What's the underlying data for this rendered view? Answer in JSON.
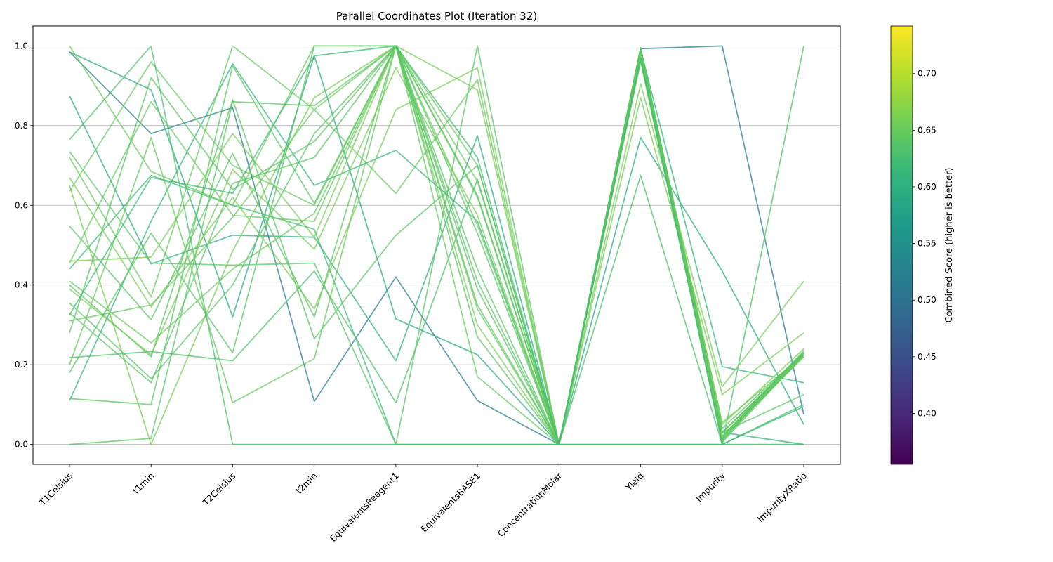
{
  "chart_data": {
    "type": "line",
    "title": "Parallel Coordinates Plot (Iteration 32)",
    "axes": [
      "T1Celsius",
      "t1min",
      "T2Celsius",
      "t2min",
      "EquivalentsReagent1",
      "EquivalentsBASE1",
      "ConcentrationMolar",
      "Yield",
      "Impurity",
      "ImpurityXRatio"
    ],
    "ylim": [
      -0.05,
      1.05
    ],
    "yticks": [
      "0.0",
      "0.2",
      "0.4",
      "0.6",
      "0.8",
      "1.0"
    ],
    "grid": "horizontal",
    "colorbar": {
      "label": "Combined Score (higher is better)",
      "range": [
        0.355,
        0.742
      ],
      "ticks": [
        "0.40",
        "0.45",
        "0.50",
        "0.55",
        "0.60",
        "0.65",
        "0.70"
      ],
      "tick_values": [
        0.4,
        0.45,
        0.5,
        0.55,
        0.6,
        0.65,
        0.7
      ],
      "colormap": [
        "#440154",
        "#482878",
        "#3e4989",
        "#31688e",
        "#26828e",
        "#1f9e89",
        "#35b779",
        "#6ece58",
        "#b5de2b",
        "#fde725"
      ]
    },
    "series": [
      {
        "values": [
          0.985,
          0.78,
          0.845,
          0.108,
          0.42,
          0.11,
          0.0,
          0.993,
          1.0,
          0.075
        ],
        "score": 0.52
      },
      {
        "values": [
          0.985,
          0.89,
          0.32,
          0.975,
          0.315,
          0.225,
          0.0,
          0.77,
          0.435,
          0.05
        ],
        "score": 0.59
      },
      {
        "values": [
          0.875,
          0.453,
          0.525,
          0.52,
          0.21,
          0.775,
          0.0,
          0.99,
          0.03,
          0.0
        ],
        "score": 0.6
      },
      {
        "values": [
          0.11,
          0.56,
          0.955,
          0.65,
          0.738,
          0.56,
          0.0,
          0.99,
          0.195,
          0.155
        ],
        "score": 0.61
      },
      {
        "values": [
          0.44,
          0.675,
          0.6,
          0.54,
          0.0,
          0.0,
          0.0,
          0.0,
          0.0,
          0.095
        ],
        "score": 0.62
      },
      {
        "values": [
          0.218,
          0.233,
          0.21,
          0.435,
          0.105,
          0.665,
          0.0,
          0.675,
          0.0,
          0.0
        ],
        "score": 0.63
      },
      {
        "values": [
          0.115,
          0.1,
          0.95,
          0.605,
          1.0,
          0.41,
          0.0,
          0.99,
          0.02,
          0.235
        ],
        "score": 0.64
      },
      {
        "values": [
          0.765,
          1.0,
          0.0,
          0.0,
          0.0,
          0.0,
          0.0,
          0.0,
          0.0,
          1.0
        ],
        "score": 0.63
      },
      {
        "values": [
          0.0,
          0.015,
          0.86,
          0.85,
          1.0,
          0.53,
          0.0,
          0.99,
          0.01,
          0.23
        ],
        "score": 0.64
      },
      {
        "values": [
          1.0,
          0.685,
          0.6,
          1.0,
          1.0,
          0.34,
          0.0,
          0.995,
          0.02,
          0.225
        ],
        "score": 0.65
      },
      {
        "values": [
          0.735,
          0.455,
          0.45,
          0.455,
          0.0,
          1.0,
          0.0,
          0.995,
          0.03,
          0.23
        ],
        "score": 0.64
      },
      {
        "values": [
          0.72,
          0.37,
          1.0,
          0.84,
          1.0,
          0.62,
          0.0,
          0.96,
          0.015,
          0.22
        ],
        "score": 0.65
      },
      {
        "values": [
          0.67,
          0.345,
          0.62,
          0.34,
          0.84,
          0.945,
          0.0,
          0.905,
          0.145,
          0.41
        ],
        "score": 0.66
      },
      {
        "values": [
          0.65,
          0.0,
          0.485,
          0.87,
          1.0,
          0.89,
          0.0,
          0.87,
          0.125,
          0.28
        ],
        "score": 0.66
      },
      {
        "values": [
          0.635,
          0.96,
          0.7,
          0.6,
          1.0,
          0.7,
          0.0,
          0.995,
          0.02,
          0.22
        ],
        "score": 0.65
      },
      {
        "values": [
          0.548,
          0.313,
          0.73,
          0.32,
          1.0,
          0.44,
          0.0,
          0.98,
          0.005,
          0.225
        ],
        "score": 0.64
      },
      {
        "values": [
          0.46,
          0.47,
          0.78,
          0.52,
          1.0,
          0.3,
          0.0,
          0.99,
          0.05,
          0.24
        ],
        "score": 0.66
      },
      {
        "values": [
          0.455,
          0.86,
          0.575,
          0.56,
          1.0,
          0.55,
          0.0,
          0.99,
          0.015,
          0.23
        ],
        "score": 0.65
      },
      {
        "values": [
          0.41,
          0.255,
          0.44,
          0.58,
          1.0,
          0.66,
          0.0,
          0.995,
          0.03,
          0.225
        ],
        "score": 0.65
      },
      {
        "values": [
          0.4,
          0.22,
          0.865,
          0.265,
          0.525,
          0.7,
          0.0,
          0.995,
          0.02,
          0.23
        ],
        "score": 0.64
      },
      {
        "values": [
          0.39,
          0.225,
          0.69,
          0.49,
          0.945,
          0.575,
          0.0,
          0.98,
          0.055,
          0.225
        ],
        "score": 0.66
      },
      {
        "values": [
          0.355,
          0.165,
          0.4,
          0.78,
          1.0,
          0.35,
          0.0,
          0.97,
          0.01,
          0.23
        ],
        "score": 0.64
      },
      {
        "values": [
          0.33,
          0.155,
          0.655,
          0.72,
          1.0,
          0.39,
          0.0,
          0.965,
          0.03,
          0.225
        ],
        "score": 0.64
      },
      {
        "values": [
          0.31,
          0.35,
          0.57,
          0.84,
          0.63,
          0.915,
          0.0,
          0.99,
          0.02,
          0.225
        ],
        "score": 0.65
      },
      {
        "values": [
          0.28,
          0.92,
          0.64,
          0.76,
          1.0,
          0.625,
          0.0,
          0.965,
          0.04,
          0.23
        ],
        "score": 0.64
      },
      {
        "values": [
          0.2,
          0.77,
          0.105,
          0.215,
          1.0,
          0.17,
          0.0,
          0.99,
          0.02,
          0.225
        ],
        "score": 0.65
      },
      {
        "values": [
          0.18,
          0.53,
          0.23,
          1.0,
          1.0,
          0.27,
          0.0,
          0.99,
          0.03,
          0.125
        ],
        "score": 0.64
      },
      {
        "values": [
          0.325,
          0.67,
          0.63,
          0.975,
          1.0,
          0.72,
          0.0,
          0.97,
          0.0,
          0.1
        ],
        "score": 0.62
      }
    ]
  }
}
